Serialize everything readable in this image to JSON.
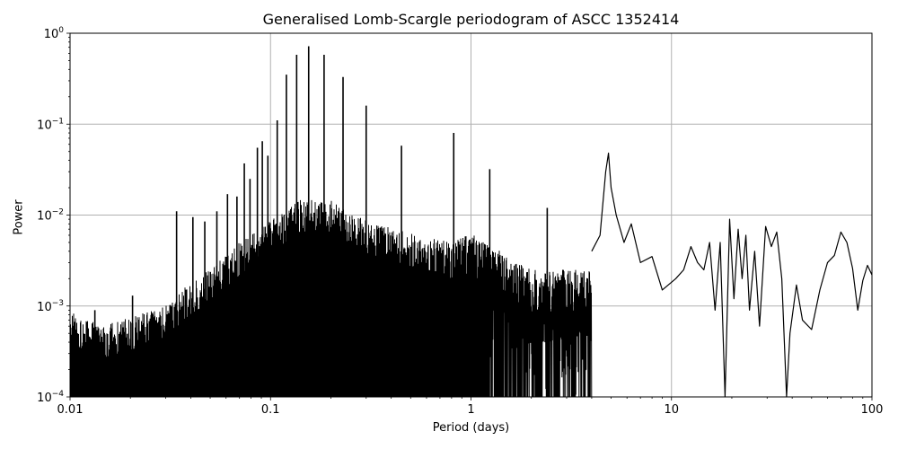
{
  "chart_data": {
    "type": "line",
    "title": "Generalised Lomb-Scargle periodogram of ASCC 1352414",
    "xlabel": "Period (days)",
    "ylabel": "Power",
    "xscale": "log",
    "yscale": "log",
    "xlim": [
      0.01,
      100
    ],
    "ylim": [
      0.0001,
      1
    ],
    "grid": true,
    "legend": null,
    "x_ticks": [
      {
        "value": 0.01,
        "label": "0.01"
      },
      {
        "value": 0.1,
        "label": "0.1"
      },
      {
        "value": 1,
        "label": "1"
      },
      {
        "value": 10,
        "label": "10"
      },
      {
        "value": 100,
        "label": "100"
      }
    ],
    "y_ticks": [
      {
        "value": 0.0001,
        "base": "10",
        "exp": "−4"
      },
      {
        "value": 0.001,
        "base": "10",
        "exp": "−3"
      },
      {
        "value": 0.01,
        "base": "10",
        "exp": "−2"
      },
      {
        "value": 0.1,
        "base": "10",
        "exp": "−1"
      },
      {
        "value": 1,
        "base": "10",
        "exp": "0"
      }
    ],
    "line_color": "#000000",
    "grid_color": "#b0b0b0",
    "noise_envelope": {
      "period": [
        0.01,
        0.015,
        0.02,
        0.03,
        0.04,
        0.05,
        0.07,
        0.1,
        0.14,
        0.2,
        0.3,
        0.5,
        0.8,
        1.0,
        1.5,
        2.0,
        3.0
      ],
      "power": [
        0.0007,
        0.0005,
        0.0006,
        0.0008,
        0.0015,
        0.002,
        0.004,
        0.007,
        0.012,
        0.012,
        0.007,
        0.005,
        0.004,
        0.005,
        0.003,
        0.002,
        0.002
      ]
    },
    "peaks": [
      {
        "period": 0.0133,
        "power": 0.0009
      },
      {
        "period": 0.0205,
        "power": 0.0013
      },
      {
        "period": 0.034,
        "power": 0.011
      },
      {
        "period": 0.041,
        "power": 0.0095
      },
      {
        "period": 0.047,
        "power": 0.0085
      },
      {
        "period": 0.054,
        "power": 0.011
      },
      {
        "period": 0.061,
        "power": 0.017
      },
      {
        "period": 0.068,
        "power": 0.016
      },
      {
        "period": 0.074,
        "power": 0.037
      },
      {
        "period": 0.079,
        "power": 0.025
      },
      {
        "period": 0.086,
        "power": 0.055
      },
      {
        "period": 0.091,
        "power": 0.065
      },
      {
        "period": 0.097,
        "power": 0.045
      },
      {
        "period": 0.108,
        "power": 0.11
      },
      {
        "period": 0.12,
        "power": 0.35
      },
      {
        "period": 0.135,
        "power": 0.58
      },
      {
        "period": 0.155,
        "power": 0.72
      },
      {
        "period": 0.185,
        "power": 0.58
      },
      {
        "period": 0.23,
        "power": 0.33
      },
      {
        "period": 0.3,
        "power": 0.16
      },
      {
        "period": 0.45,
        "power": 0.058
      },
      {
        "period": 0.82,
        "power": 0.08
      },
      {
        "period": 1.24,
        "power": 0.032
      },
      {
        "period": 2.4,
        "power": 0.012
      }
    ],
    "tail_curve": {
      "period": [
        4.0,
        4.4,
        4.7,
        4.85,
        5.0,
        5.3,
        5.8,
        6.3,
        7.0,
        8.0,
        9.0,
        10.5,
        11.5,
        12.5,
        13.5,
        14.5,
        15.5,
        16.5,
        17.5,
        18.5,
        19.5,
        20.5,
        21.5,
        22.5,
        23.5,
        24.5,
        26,
        27.5,
        29.5,
        31.5,
        33.5,
        35.5,
        37.5,
        39,
        42,
        45,
        50,
        55,
        60,
        65,
        70,
        75,
        80,
        85,
        90,
        95,
        100
      ],
      "power": [
        0.004,
        0.006,
        0.03,
        0.048,
        0.02,
        0.01,
        0.005,
        0.008,
        0.003,
        0.0035,
        0.0015,
        0.002,
        0.0025,
        0.0045,
        0.003,
        0.0025,
        0.005,
        0.0009,
        0.005,
        0.0001,
        0.009,
        0.0012,
        0.007,
        0.002,
        0.006,
        0.0009,
        0.004,
        0.0006,
        0.0075,
        0.0045,
        0.0065,
        0.002,
        0.0001,
        0.0005,
        0.0017,
        0.0007,
        0.00055,
        0.0015,
        0.003,
        0.0036,
        0.0065,
        0.005,
        0.0026,
        0.0009,
        0.0019,
        0.0028,
        0.0022
      ]
    }
  }
}
